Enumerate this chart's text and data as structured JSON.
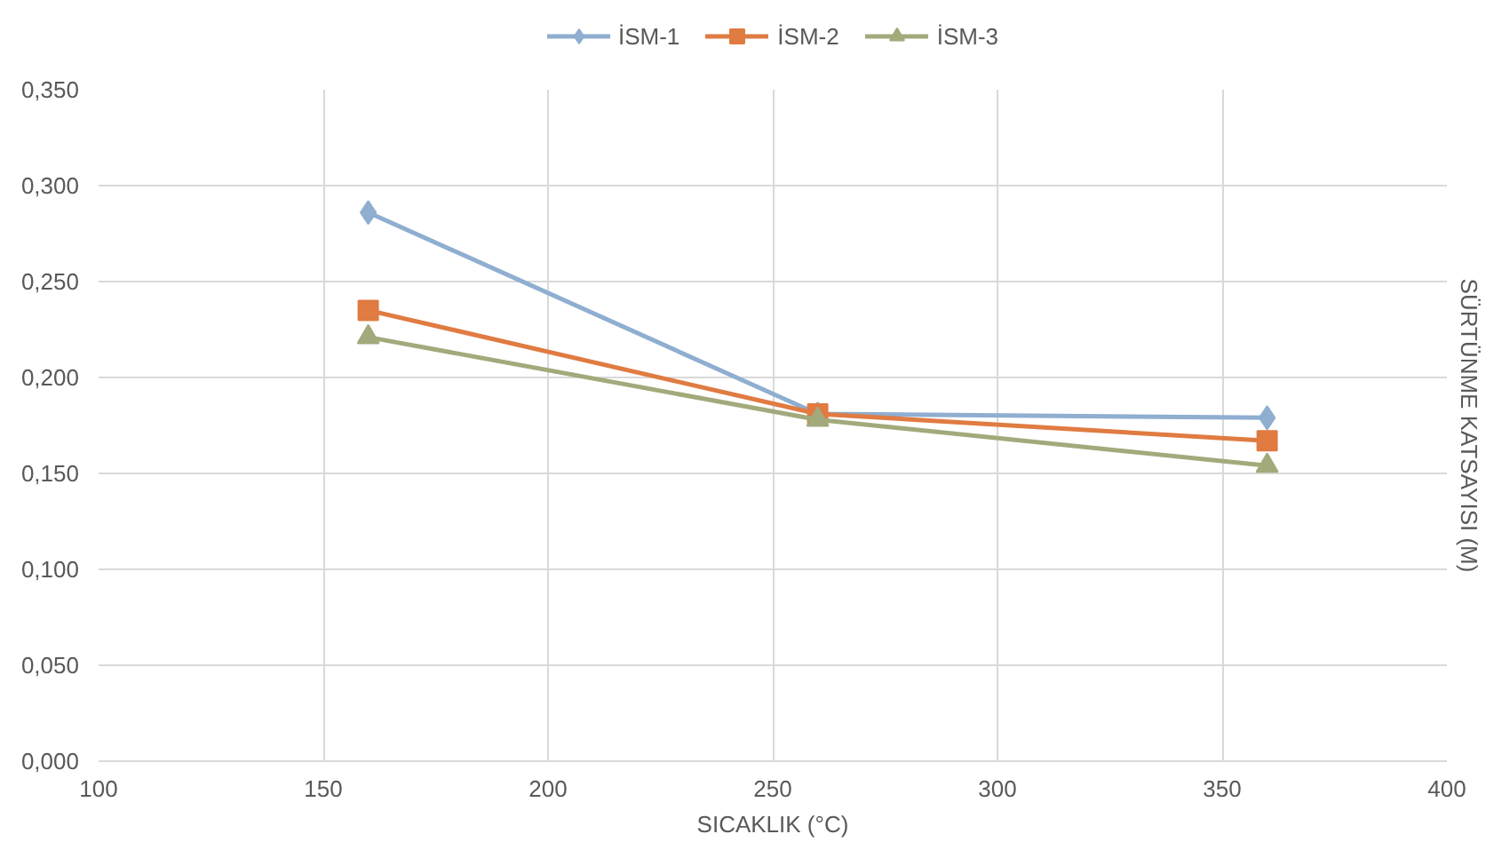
{
  "chart_data": {
    "type": "line",
    "xlabel": "SICAKLIK (°C)",
    "y2label": "SÜRTÜNME KATSAYISI (M)",
    "x": [
      160,
      260,
      360
    ],
    "series": [
      {
        "name": "İSM-1",
        "color": "#8faed0",
        "values": [
          0.286,
          0.181,
          0.179
        ],
        "marker": "diamond"
      },
      {
        "name": "İSM-2",
        "color": "#e07b42",
        "values": [
          0.235,
          0.181,
          0.167
        ],
        "marker": "square"
      },
      {
        "name": "İSM-3",
        "color": "#a2aa7c",
        "values": [
          0.221,
          0.178,
          0.154
        ],
        "marker": "triangle"
      }
    ],
    "xlim": [
      100,
      400
    ],
    "xticks": [
      100,
      150,
      200,
      250,
      300,
      350,
      400
    ],
    "ylim": [
      0,
      0.35
    ],
    "yticks": [
      {
        "value": 0,
        "label": "0,000"
      },
      {
        "value": 0.05,
        "label": "0,050"
      },
      {
        "value": 0.1,
        "label": "0,100"
      },
      {
        "value": 0.15,
        "label": "0,150"
      },
      {
        "value": 0.2,
        "label": "0,200"
      },
      {
        "value": 0.25,
        "label": "0,250"
      },
      {
        "value": 0.3,
        "label": "0,300"
      },
      {
        "value": 0.35,
        "label": "0,350"
      }
    ],
    "grid": true,
    "legend": "top",
    "line_style": "solid"
  }
}
